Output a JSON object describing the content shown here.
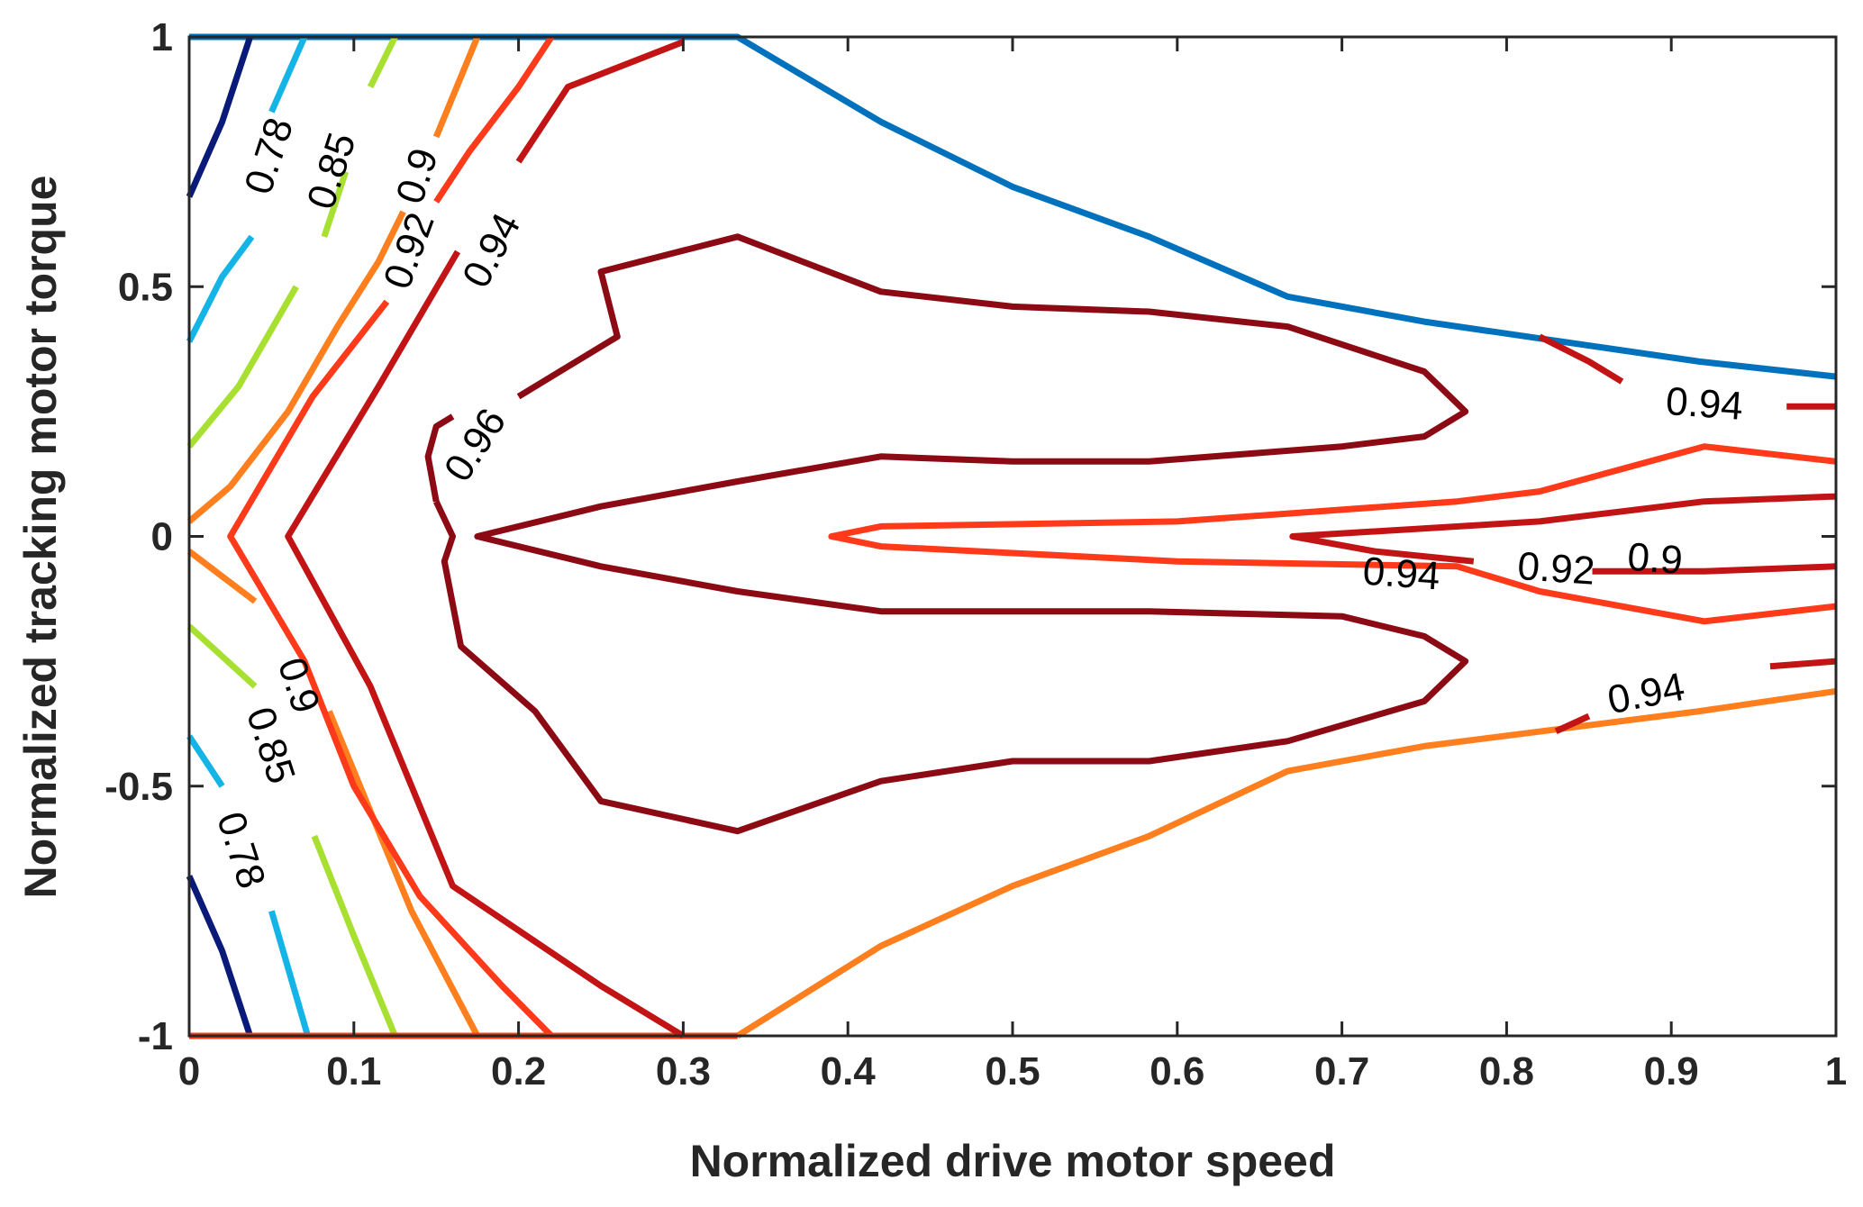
{
  "chart_data": {
    "type": "contour",
    "xlabel": "Normalized drive motor speed",
    "ylabel": "Normalized tracking motor torque",
    "xlim": [
      0,
      1
    ],
    "ylim": [
      -1,
      1
    ],
    "xticks": [
      0,
      0.1,
      0.2,
      0.3,
      0.4,
      0.5,
      0.6,
      0.7,
      0.8,
      0.9,
      1
    ],
    "xtick_labels": [
      "0",
      "0.1",
      "0.2",
      "0.3",
      "0.4",
      "0.5",
      "0.6",
      "0.7",
      "0.8",
      "0.9",
      "1"
    ],
    "yticks": [
      1,
      0.5,
      0,
      -0.5,
      -1
    ],
    "ytick_labels": [
      "1",
      "0.5",
      "0",
      "-0.5",
      "-1"
    ],
    "grid": false,
    "contours": [
      {
        "level": "boundary",
        "color": "#0072bd",
        "segments": [
          [
            [
              0.0,
              1.0
            ],
            [
              0.333,
              1.0
            ],
            [
              0.42,
              0.83
            ],
            [
              0.5,
              0.7
            ],
            [
              0.583,
              0.6
            ],
            [
              0.667,
              0.48
            ],
            [
              0.75,
              0.43
            ],
            [
              0.917,
              0.35
            ],
            [
              1.0,
              0.32
            ]
          ]
        ]
      },
      {
        "level": "0.78",
        "color": "#0a1a78",
        "segments": [
          [
            [
              0.0,
              0.68
            ],
            [
              0.02,
              0.83
            ],
            [
              0.037,
              1.0
            ]
          ],
          [
            [
              0.0,
              -0.68
            ],
            [
              0.02,
              -0.83
            ],
            [
              0.037,
              -1.0
            ]
          ]
        ]
      },
      {
        "level": "0.78",
        "color": "#15b4e6",
        "segments": [
          [
            [
              0.0,
              0.39
            ],
            [
              0.02,
              0.52
            ],
            [
              0.038,
              0.6
            ]
          ],
          [
            [
              0.05,
              0.85
            ],
            [
              0.07,
              1.0
            ]
          ],
          [
            [
              0.0,
              -0.4
            ],
            [
              0.02,
              -0.5
            ]
          ],
          [
            [
              0.05,
              -0.75
            ],
            [
              0.072,
              -1.0
            ]
          ]
        ]
      },
      {
        "level": "0.85",
        "color": "#a8e032",
        "segments": [
          [
            [
              0.0,
              0.18
            ],
            [
              0.03,
              0.3
            ],
            [
              0.065,
              0.5
            ]
          ],
          [
            [
              0.082,
              0.6
            ],
            [
              0.095,
              0.73
            ]
          ],
          [
            [
              0.11,
              0.9
            ],
            [
              0.125,
              1.0
            ]
          ],
          [
            [
              0.0,
              -0.18
            ],
            [
              0.04,
              -0.3
            ]
          ],
          [
            [
              0.076,
              -0.6
            ],
            [
              0.1,
              -0.8
            ],
            [
              0.125,
              -1.0
            ]
          ]
        ]
      },
      {
        "level": "0.9",
        "color": "#ff7f1e",
        "segments": [
          [
            [
              0.0,
              0.03
            ],
            [
              0.025,
              0.1
            ],
            [
              0.06,
              0.25
            ],
            [
              0.09,
              0.42
            ],
            [
              0.115,
              0.55
            ],
            [
              0.13,
              0.65
            ]
          ],
          [
            [
              0.15,
              0.8
            ],
            [
              0.175,
              1.0
            ]
          ],
          [
            [
              0.0,
              -0.03
            ],
            [
              0.04,
              -0.13
            ]
          ],
          [
            [
              0.085,
              -0.35
            ],
            [
              0.11,
              -0.55
            ],
            [
              0.135,
              -0.75
            ],
            [
              0.175,
              -1.0
            ]
          ],
          [
            [
              0.333,
              -1.0
            ],
            [
              0.42,
              -0.82
            ],
            [
              0.5,
              -0.7
            ],
            [
              0.583,
              -0.6
            ],
            [
              0.667,
              -0.47
            ],
            [
              0.75,
              -0.42
            ],
            [
              0.917,
              -0.35
            ],
            [
              1.0,
              -0.31
            ]
          ]
        ]
      },
      {
        "level": "0.92",
        "color": "#ff3a1a",
        "segments": [
          [
            [
              0.12,
              0.47
            ],
            [
              0.075,
              0.28
            ],
            [
              0.025,
              0.0
            ],
            [
              0.07,
              -0.25
            ],
            [
              0.1,
              -0.5
            ],
            [
              0.14,
              -0.72
            ],
            [
              0.19,
              -0.9
            ],
            [
              0.22,
              -1.0
            ]
          ],
          [
            [
              0.15,
              0.67
            ],
            [
              0.17,
              0.77
            ],
            [
              0.2,
              0.9
            ],
            [
              0.22,
              1.0
            ]
          ],
          [
            [
              0.0,
              -1.0
            ],
            [
              0.333,
              -1.0
            ]
          ],
          [
            [
              1.0,
              0.15
            ],
            [
              0.92,
              0.18
            ],
            [
              0.82,
              0.09
            ],
            [
              0.77,
              0.07
            ],
            [
              0.6,
              0.03
            ],
            [
              0.42,
              0.02
            ],
            [
              0.39,
              0.0
            ],
            [
              0.42,
              -0.02
            ],
            [
              0.6,
              -0.05
            ],
            [
              0.77,
              -0.06
            ],
            [
              0.82,
              -0.11
            ],
            [
              0.92,
              -0.17
            ],
            [
              1.0,
              -0.14
            ]
          ]
        ]
      },
      {
        "level": "0.94",
        "color": "#c21414",
        "segments": [
          [
            [
              0.163,
              0.57
            ],
            [
              0.115,
              0.3
            ],
            [
              0.06,
              0.0
            ],
            [
              0.11,
              -0.3
            ],
            [
              0.16,
              -0.7
            ],
            [
              0.25,
              -0.9
            ],
            [
              0.3,
              -1.0
            ]
          ],
          [
            [
              0.2,
              0.75
            ],
            [
              0.23,
              0.9
            ],
            [
              0.3,
              0.99
            ]
          ],
          [
            [
              0.82,
              0.4
            ],
            [
              0.85,
              0.35
            ],
            [
              0.87,
              0.31
            ]
          ],
          [
            [
              0.97,
              0.26
            ],
            [
              1.0,
              0.26
            ]
          ],
          [
            [
              1.0,
              0.08
            ],
            [
              0.92,
              0.07
            ],
            [
              0.82,
              0.03
            ],
            [
              0.67,
              0.0
            ],
            [
              0.72,
              -0.03
            ],
            [
              0.78,
              -0.05
            ]
          ],
          [
            [
              0.852,
              -0.07
            ],
            [
              0.92,
              -0.07
            ],
            [
              1.0,
              -0.06
            ]
          ],
          [
            [
              0.83,
              -0.39
            ],
            [
              0.85,
              -0.36
            ]
          ],
          [
            [
              0.96,
              -0.26
            ],
            [
              1.0,
              -0.25
            ]
          ]
        ]
      },
      {
        "level": "0.96",
        "color": "#8c0a14",
        "segments": [
          [
            [
              0.15,
              0.07
            ],
            [
              0.145,
              0.16
            ],
            [
              0.15,
              0.22
            ],
            [
              0.16,
              0.24
            ]
          ],
          [
            [
              0.2,
              0.28
            ],
            [
              0.26,
              0.4
            ],
            [
              0.25,
              0.53
            ],
            [
              0.333,
              0.6
            ],
            [
              0.42,
              0.49
            ],
            [
              0.5,
              0.46
            ],
            [
              0.583,
              0.45
            ],
            [
              0.667,
              0.42
            ],
            [
              0.75,
              0.33
            ],
            [
              0.775,
              0.25
            ],
            [
              0.75,
              0.2
            ],
            [
              0.7,
              0.18
            ],
            [
              0.583,
              0.15
            ],
            [
              0.5,
              0.15
            ],
            [
              0.42,
              0.16
            ],
            [
              0.333,
              0.11
            ],
            [
              0.25,
              0.06
            ],
            [
              0.175,
              0.0
            ],
            [
              0.25,
              -0.06
            ],
            [
              0.333,
              -0.11
            ],
            [
              0.42,
              -0.15
            ],
            [
              0.5,
              -0.15
            ],
            [
              0.583,
              -0.15
            ],
            [
              0.7,
              -0.16
            ],
            [
              0.75,
              -0.2
            ],
            [
              0.775,
              -0.25
            ],
            [
              0.75,
              -0.33
            ],
            [
              0.667,
              -0.41
            ],
            [
              0.583,
              -0.45
            ],
            [
              0.5,
              -0.45
            ],
            [
              0.42,
              -0.49
            ],
            [
              0.333,
              -0.59
            ],
            [
              0.25,
              -0.53
            ],
            [
              0.21,
              -0.35
            ],
            [
              0.165,
              -0.22
            ],
            [
              0.155,
              -0.05
            ],
            [
              0.16,
              0.0
            ],
            [
              0.15,
              0.07
            ]
          ]
        ]
      }
    ],
    "labels": [
      {
        "text": "0.78",
        "x": 0.05,
        "y": 0.76,
        "angle": -72
      },
      {
        "text": "0.85",
        "x": 0.088,
        "y": 0.73,
        "angle": -72
      },
      {
        "text": "0.9",
        "x": 0.14,
        "y": 0.72,
        "angle": -72
      },
      {
        "text": "0.92",
        "x": 0.135,
        "y": 0.57,
        "angle": -70
      },
      {
        "text": "0.94",
        "x": 0.185,
        "y": 0.57,
        "angle": -62
      },
      {
        "text": "0.96",
        "x": 0.175,
        "y": 0.18,
        "angle": -57
      },
      {
        "text": "0.94",
        "x": 0.92,
        "y": 0.26,
        "angle": 4
      },
      {
        "text": "0.94",
        "x": 0.736,
        "y": -0.08,
        "angle": 4
      },
      {
        "text": "0.92",
        "x": 0.83,
        "y": -0.07,
        "angle": 4
      },
      {
        "text": "0.9",
        "x": 0.89,
        "y": -0.05,
        "angle": 4
      },
      {
        "text": "0.94",
        "x": 0.885,
        "y": -0.32,
        "angle": -11
      },
      {
        "text": "0.9",
        "x": 0.065,
        "y": -0.3,
        "angle": 72
      },
      {
        "text": "0.85",
        "x": 0.048,
        "y": -0.42,
        "angle": 72
      },
      {
        "text": "0.78",
        "x": 0.03,
        "y": -0.63,
        "angle": 72
      }
    ]
  }
}
